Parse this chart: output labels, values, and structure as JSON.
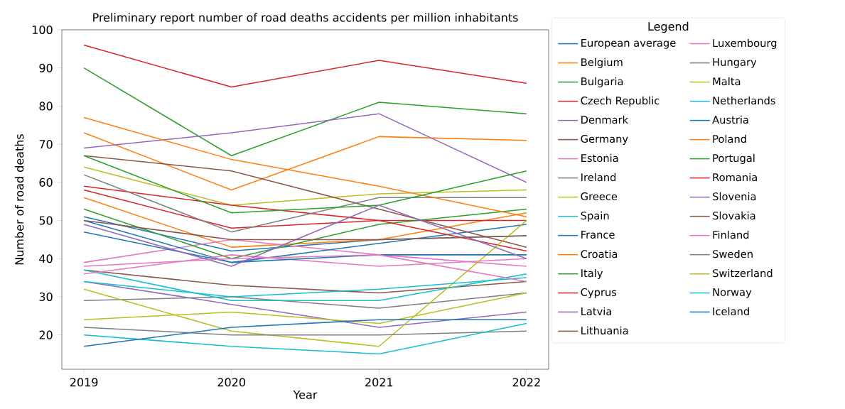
{
  "chart_data": {
    "type": "line",
    "title": "Preliminary report number of road deaths accidents per million inhabitants",
    "xlabel": "Year",
    "ylabel": "Number of road deaths",
    "legend_title": "Legend",
    "legend": "right",
    "x": [
      2019,
      2020,
      2021,
      2022
    ],
    "xlim": [
      2018.85,
      2022.15
    ],
    "xticks": [
      2019,
      2020,
      2021,
      2022
    ],
    "ylim": [
      11,
      100
    ],
    "yticks": [
      20,
      30,
      40,
      50,
      60,
      70,
      80,
      90,
      100
    ],
    "series": [
      {
        "name": "European average",
        "color": "#1f77b4",
        "values": [
          51,
          42,
          45,
          46
        ]
      },
      {
        "name": "Belgium",
        "color": "#ff7f0e",
        "values": [
          56,
          43,
          45,
          52
        ]
      },
      {
        "name": "Bulgaria",
        "color": "#2ca02c",
        "values": [
          90,
          67,
          81,
          78
        ]
      },
      {
        "name": "Czech Republic",
        "color": "#d62728",
        "values": [
          58,
          48,
          50,
          50
        ]
      },
      {
        "name": "Denmark",
        "color": "#9467bd",
        "values": [
          34,
          28,
          22,
          26
        ]
      },
      {
        "name": "Germany",
        "color": "#8c564b",
        "values": [
          37,
          33,
          31,
          34
        ]
      },
      {
        "name": "Estonia",
        "color": "#e377c2",
        "values": [
          39,
          45,
          41,
          38
        ]
      },
      {
        "name": "Ireland",
        "color": "#7f7f7f",
        "values": [
          29,
          30,
          27,
          31
        ]
      },
      {
        "name": "Greece",
        "color": "#bcbd22",
        "values": [
          64,
          54,
          57,
          58
        ]
      },
      {
        "name": "Spain",
        "color": "#17becf",
        "values": [
          37,
          29,
          29,
          36
        ]
      },
      {
        "name": "France",
        "color": "#1f77b4",
        "values": [
          50,
          39,
          44,
          49
        ]
      },
      {
        "name": "Croatia",
        "color": "#ff7f0e",
        "values": [
          73,
          58,
          72,
          71
        ]
      },
      {
        "name": "Italy",
        "color": "#2ca02c",
        "values": [
          53,
          40,
          49,
          53
        ]
      },
      {
        "name": "Cyprus",
        "color": "#d62728",
        "values": [
          59,
          54,
          50,
          42
        ]
      },
      {
        "name": "Latvia",
        "color": "#9467bd",
        "values": [
          69,
          73,
          78,
          60
        ]
      },
      {
        "name": "Lithuania",
        "color": "#8c564b",
        "values": [
          67,
          63,
          53,
          43
        ]
      },
      {
        "name": "Luxembourg",
        "color": "#e377c2",
        "values": [
          36,
          41,
          38,
          40
        ]
      },
      {
        "name": "Hungary",
        "color": "#7f7f7f",
        "values": [
          62,
          47,
          56,
          56
        ]
      },
      {
        "name": "Malta",
        "color": "#bcbd22",
        "values": [
          32,
          21,
          17,
          50
        ]
      },
      {
        "name": "Netherlands",
        "color": "#17becf",
        "values": [
          34,
          30,
          32,
          35
        ]
      },
      {
        "name": "Austria",
        "color": "#1f77b4",
        "values": [
          47,
          39,
          41,
          41
        ]
      },
      {
        "name": "Poland",
        "color": "#ff7f0e",
        "values": [
          77,
          66,
          59,
          51
        ]
      },
      {
        "name": "Portugal",
        "color": "#2ca02c",
        "values": [
          67,
          52,
          54,
          63
        ]
      },
      {
        "name": "Romania",
        "color": "#d62728",
        "values": [
          96,
          85,
          92,
          86
        ]
      },
      {
        "name": "Slovenia",
        "color": "#9467bd",
        "values": [
          49,
          38,
          54,
          40
        ]
      },
      {
        "name": "Slovakia",
        "color": "#8c564b",
        "values": [
          50,
          45,
          45,
          46
        ]
      },
      {
        "name": "Finland",
        "color": "#e377c2",
        "values": [
          38,
          40,
          41,
          34
        ]
      },
      {
        "name": "Sweden",
        "color": "#7f7f7f",
        "values": [
          22,
          20,
          20,
          21
        ]
      },
      {
        "name": "Switzerland",
        "color": "#bcbd22",
        "values": [
          24,
          26,
          23,
          31
        ]
      },
      {
        "name": "Norway",
        "color": "#17becf",
        "values": [
          20,
          17,
          15,
          23
        ]
      },
      {
        "name": "Iceland",
        "color": "#1f77b4",
        "values": [
          17,
          22,
          24,
          24
        ]
      }
    ]
  }
}
